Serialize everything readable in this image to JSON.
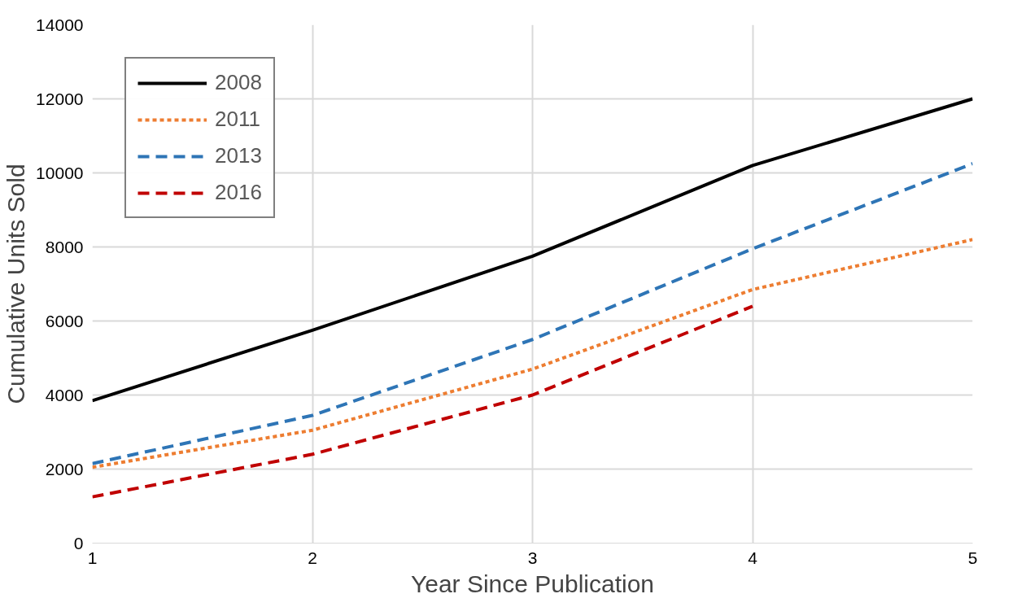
{
  "chart_data": {
    "type": "line",
    "xlabel": "Year Since Publication",
    "ylabel": "Cumulative Units Sold",
    "x": [
      1,
      2,
      3,
      4,
      5
    ],
    "xlim": [
      1,
      5
    ],
    "xticks": [
      1,
      2,
      3,
      4,
      5
    ],
    "ylim": [
      0,
      14000
    ],
    "yticks": [
      0,
      2000,
      4000,
      6000,
      8000,
      10000,
      12000,
      14000
    ],
    "grid": true,
    "legend": "top left",
    "marker": "none",
    "series": [
      {
        "name": "2008",
        "color": "#000000",
        "line_style": "solid",
        "values": [
          3850,
          5750,
          7750,
          10200,
          12000
        ]
      },
      {
        "name": "2011",
        "color": "#ed7d31",
        "line_style": "dotted",
        "values": [
          2050,
          3050,
          4700,
          6850,
          8200
        ]
      },
      {
        "name": "2013",
        "color": "#2e75b6",
        "line_style": "dashed",
        "values": [
          2150,
          3450,
          5500,
          7950,
          10250
        ]
      },
      {
        "name": "2016",
        "color": "#c00000",
        "line_style": "dashed",
        "values": [
          1250,
          2400,
          4000,
          6400,
          null
        ]
      }
    ]
  }
}
